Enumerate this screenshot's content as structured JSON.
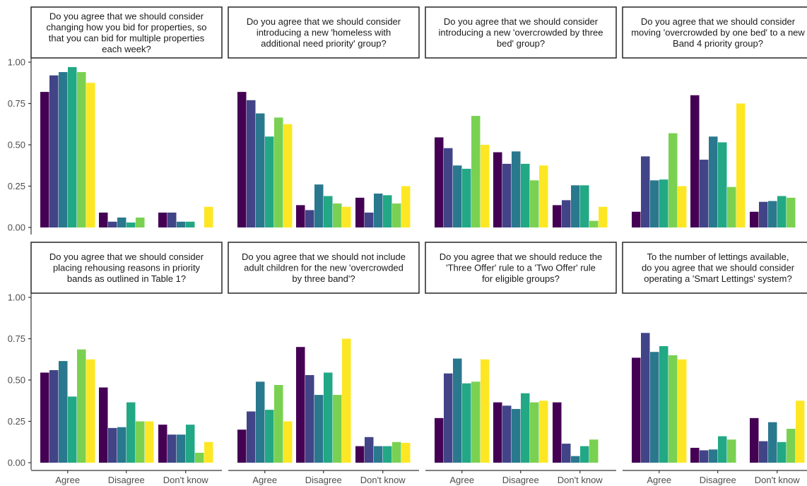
{
  "figure": {
    "y_ticks": [
      "0.00",
      "0.25",
      "0.50",
      "0.75",
      "1.00"
    ],
    "series_colors": [
      "#440154",
      "#414487",
      "#2a788e",
      "#22a884",
      "#7ad151",
      "#fde725"
    ]
  },
  "chart_data": [
    {
      "type": "bar",
      "title": "Do you agree that we should consider changing how you bid for properties, so that you can bid for multiple properties each week?",
      "title_lines": [
        "Do you agree that we should consider",
        "changing how you bid for properties, so",
        "that you can bid for multiple properties",
        "each week?"
      ],
      "categories": [
        "Agree",
        "Disagree",
        "Don't know"
      ],
      "series": [
        {
          "values": [
            0.82,
            0.09,
            0.09
          ]
        },
        {
          "values": [
            0.92,
            0.035,
            0.09
          ]
        },
        {
          "values": [
            0.94,
            0.06,
            0.035
          ]
        },
        {
          "values": [
            0.97,
            0.03,
            0.035
          ]
        },
        {
          "values": [
            0.94,
            0.06,
            0
          ]
        },
        {
          "values": [
            0.875,
            0,
            0.125
          ]
        }
      ],
      "ylim": [
        0,
        1.0
      ]
    },
    {
      "type": "bar",
      "title": "Do you agree that we should consider introducing a new 'homeless with additional need priority' group?",
      "title_lines": [
        "Do you agree that we should consider",
        "introducing a new 'homeless with",
        "additional need priority' group?"
      ],
      "categories": [
        "Agree",
        "Disagree",
        "Don't know"
      ],
      "series": [
        {
          "values": [
            0.82,
            0.135,
            0.18
          ]
        },
        {
          "values": [
            0.77,
            0.105,
            0.09
          ]
        },
        {
          "values": [
            0.69,
            0.26,
            0.205
          ]
        },
        {
          "values": [
            0.55,
            0.19,
            0.195
          ]
        },
        {
          "values": [
            0.665,
            0.145,
            0.145
          ]
        },
        {
          "values": [
            0.625,
            0.125,
            0.25
          ]
        }
      ],
      "ylim": [
        0,
        1.0
      ]
    },
    {
      "type": "bar",
      "title": "Do you agree that we should consider introducing a new 'overcrowded by three bed' group?",
      "title_lines": [
        "Do you agree that we should consider",
        "introducing a new 'overcrowded by three",
        "bed' group?"
      ],
      "categories": [
        "Agree",
        "Disagree",
        "Don't know"
      ],
      "series": [
        {
          "values": [
            0.545,
            0.455,
            0.135
          ]
        },
        {
          "values": [
            0.48,
            0.385,
            0.165
          ]
        },
        {
          "values": [
            0.375,
            0.46,
            0.255
          ]
        },
        {
          "values": [
            0.355,
            0.385,
            0.255
          ]
        },
        {
          "values": [
            0.675,
            0.285,
            0.04
          ]
        },
        {
          "values": [
            0.5,
            0.375,
            0.125
          ]
        }
      ],
      "ylim": [
        0,
        1.0
      ]
    },
    {
      "type": "bar",
      "title": "Do you agree that we should consider moving 'overcrowded by one bed' to a new Band 4 priority group?",
      "title_lines": [
        "Do you agree that we should consider",
        "moving 'overcrowded by one bed' to a new",
        "Band 4 priority group?"
      ],
      "categories": [
        "Agree",
        "Disagree",
        "Don't know"
      ],
      "series": [
        {
          "values": [
            0.095,
            0.8,
            0.095
          ]
        },
        {
          "values": [
            0.43,
            0.41,
            0.155
          ]
        },
        {
          "values": [
            0.285,
            0.55,
            0.16
          ]
        },
        {
          "values": [
            0.29,
            0.515,
            0.19
          ]
        },
        {
          "values": [
            0.57,
            0.245,
            0.18
          ]
        },
        {
          "values": [
            0.25,
            0.75,
            0
          ]
        }
      ],
      "ylim": [
        0,
        1.0
      ]
    },
    {
      "type": "bar",
      "title": "Do you agree that we should consider placing rehousing reasons in priority bands as outlined in Table 1?",
      "title_lines": [
        "Do you agree that we should consider",
        "placing rehousing reasons in priority",
        "bands as outlined in Table 1?"
      ],
      "categories": [
        "Agree",
        "Disagree",
        "Don't know"
      ],
      "series": [
        {
          "values": [
            0.545,
            0.455,
            0.23
          ]
        },
        {
          "values": [
            0.56,
            0.21,
            0.17
          ]
        },
        {
          "values": [
            0.615,
            0.215,
            0.17
          ]
        },
        {
          "values": [
            0.4,
            0.365,
            0.23
          ]
        },
        {
          "values": [
            0.685,
            0.25,
            0.06
          ]
        },
        {
          "values": [
            0.625,
            0.25,
            0.125
          ]
        }
      ],
      "ylim": [
        0,
        1.0
      ]
    },
    {
      "type": "bar",
      "title": "Do you agree that we should not include adult children for the new 'overcrowded by three band'?",
      "title_lines": [
        "Do you agree that we should not include",
        "adult children for the new 'overcrowded",
        "by three band'?"
      ],
      "categories": [
        "Agree",
        "Disagree",
        "Don't know"
      ],
      "series": [
        {
          "values": [
            0.2,
            0.7,
            0.1
          ]
        },
        {
          "values": [
            0.31,
            0.53,
            0.155
          ]
        },
        {
          "values": [
            0.49,
            0.41,
            0.1
          ]
        },
        {
          "values": [
            0.32,
            0.545,
            0.1
          ]
        },
        {
          "values": [
            0.47,
            0.41,
            0.125
          ]
        },
        {
          "values": [
            0.25,
            0.75,
            0.12
          ]
        }
      ],
      "ylim": [
        0,
        1.0
      ]
    },
    {
      "type": "bar",
      "title": "Do you agree that we should reduce the 'Three Offer' rule to a 'Two Offer' rule for eligible groups?",
      "title_lines": [
        "Do you agree that we should reduce the",
        "'Three Offer' rule to a 'Two Offer' rule",
        "for eligible groups?"
      ],
      "categories": [
        "Agree",
        "Disagree",
        "Don't know"
      ],
      "series": [
        {
          "values": [
            0.27,
            0.365,
            0.365
          ]
        },
        {
          "values": [
            0.54,
            0.345,
            0.115
          ]
        },
        {
          "values": [
            0.63,
            0.325,
            0.04
          ]
        },
        {
          "values": [
            0.48,
            0.42,
            0.1
          ]
        },
        {
          "values": [
            0.49,
            0.365,
            0.14
          ]
        },
        {
          "values": [
            0.625,
            0.375,
            0
          ]
        }
      ],
      "ylim": [
        0,
        1.0
      ]
    },
    {
      "type": "bar",
      "title": "To the number of lettings available, do you agree that we should consider operating a 'Smart Lettings' system?",
      "title_lines": [
        "To the number of lettings available,",
        "do you agree that we should consider",
        "operating a 'Smart Lettings' system?"
      ],
      "categories": [
        "Agree",
        "Disagree",
        "Don't know"
      ],
      "series": [
        {
          "values": [
            0.635,
            0.09,
            0.27
          ]
        },
        {
          "values": [
            0.785,
            0.075,
            0.13
          ]
        },
        {
          "values": [
            0.67,
            0.08,
            0.245
          ]
        },
        {
          "values": [
            0.705,
            0.16,
            0.125
          ]
        },
        {
          "values": [
            0.65,
            0.14,
            0.205
          ]
        },
        {
          "values": [
            0.625,
            0,
            0.375
          ]
        }
      ],
      "ylim": [
        0,
        1.0
      ]
    }
  ]
}
